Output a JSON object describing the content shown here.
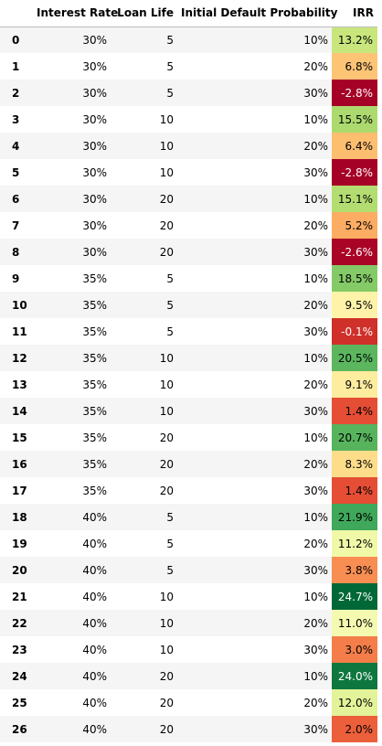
{
  "table": {
    "columns": [
      "",
      "Interest Rate",
      "Loan Life",
      "Initial Default Probability",
      "IRR"
    ],
    "rows": [
      {
        "index": "0",
        "rate": "30%",
        "life": "5",
        "prob": "10%",
        "irr": "13.2%",
        "irr_value": 13.2,
        "irr_bg": "#c8e67c",
        "irr_color": "#000000"
      },
      {
        "index": "1",
        "rate": "30%",
        "life": "5",
        "prob": "20%",
        "irr": "6.8%",
        "irr_value": 6.8,
        "irr_bg": "#fdc476",
        "irr_color": "#000000"
      },
      {
        "index": "2",
        "rate": "30%",
        "life": "5",
        "prob": "30%",
        "irr": "-2.8%",
        "irr_value": -2.8,
        "irr_bg": "#a50026",
        "irr_color": "#ffffff"
      },
      {
        "index": "3",
        "rate": "30%",
        "life": "10",
        "prob": "10%",
        "irr": "15.5%",
        "irr_value": 15.5,
        "irr_bg": "#acda6e",
        "irr_color": "#000000"
      },
      {
        "index": "4",
        "rate": "30%",
        "life": "10",
        "prob": "20%",
        "irr": "6.4%",
        "irr_value": 6.4,
        "irr_bg": "#fdbe70",
        "irr_color": "#000000"
      },
      {
        "index": "5",
        "rate": "30%",
        "life": "10",
        "prob": "30%",
        "irr": "-2.8%",
        "irr_value": -2.8,
        "irr_bg": "#a50026",
        "irr_color": "#ffffff"
      },
      {
        "index": "6",
        "rate": "30%",
        "life": "20",
        "prob": "10%",
        "irr": "15.1%",
        "irr_value": 15.1,
        "irr_bg": "#b3dd70",
        "irr_color": "#000000"
      },
      {
        "index": "7",
        "rate": "30%",
        "life": "20",
        "prob": "20%",
        "irr": "5.2%",
        "irr_value": 5.2,
        "irr_bg": "#fcac63",
        "irr_color": "#000000"
      },
      {
        "index": "8",
        "rate": "30%",
        "life": "20",
        "prob": "30%",
        "irr": "-2.6%",
        "irr_value": -2.6,
        "irr_bg": "#a90426",
        "irr_color": "#ffffff"
      },
      {
        "index": "9",
        "rate": "35%",
        "life": "5",
        "prob": "10%",
        "irr": "18.5%",
        "irr_value": 18.5,
        "irr_bg": "#84ca66",
        "irr_color": "#000000"
      },
      {
        "index": "10",
        "rate": "35%",
        "life": "5",
        "prob": "20%",
        "irr": "9.5%",
        "irr_value": 9.5,
        "irr_bg": "#fef3a8",
        "irr_color": "#000000"
      },
      {
        "index": "11",
        "rate": "35%",
        "life": "5",
        "prob": "30%",
        "irr": "-0.1%",
        "irr_value": -0.1,
        "irr_bg": "#d0302a",
        "irr_color": "#ffffff"
      },
      {
        "index": "12",
        "rate": "35%",
        "life": "10",
        "prob": "10%",
        "irr": "20.5%",
        "irr_value": 20.5,
        "irr_bg": "#5bb65e",
        "irr_color": "#000000"
      },
      {
        "index": "13",
        "rate": "35%",
        "life": "10",
        "prob": "20%",
        "irr": "9.1%",
        "irr_value": 9.1,
        "irr_bg": "#feec9f",
        "irr_color": "#000000"
      },
      {
        "index": "14",
        "rate": "35%",
        "life": "10",
        "prob": "30%",
        "irr": "1.4%",
        "irr_value": 1.4,
        "irr_bg": "#e54e35",
        "irr_color": "#000000"
      },
      {
        "index": "15",
        "rate": "35%",
        "life": "20",
        "prob": "10%",
        "irr": "20.7%",
        "irr_value": 20.7,
        "irr_bg": "#57b45d",
        "irr_color": "#000000"
      },
      {
        "index": "16",
        "rate": "35%",
        "life": "20",
        "prob": "20%",
        "irr": "8.3%",
        "irr_value": 8.3,
        "irr_bg": "#fedd8a",
        "irr_color": "#000000"
      },
      {
        "index": "17",
        "rate": "35%",
        "life": "20",
        "prob": "30%",
        "irr": "1.4%",
        "irr_value": 1.4,
        "irr_bg": "#e54e35",
        "irr_color": "#000000"
      },
      {
        "index": "18",
        "rate": "40%",
        "life": "5",
        "prob": "10%",
        "irr": "21.9%",
        "irr_value": 21.9,
        "irr_bg": "#3fa85a",
        "irr_color": "#000000"
      },
      {
        "index": "19",
        "rate": "40%",
        "life": "5",
        "prob": "20%",
        "irr": "11.2%",
        "irr_value": 11.2,
        "irr_bg": "#f0f9a8",
        "irr_color": "#000000"
      },
      {
        "index": "20",
        "rate": "40%",
        "life": "5",
        "prob": "30%",
        "irr": "3.8%",
        "irr_value": 3.8,
        "irr_bg": "#f88e52",
        "irr_color": "#000000"
      },
      {
        "index": "21",
        "rate": "40%",
        "life": "10",
        "prob": "10%",
        "irr": "24.7%",
        "irr_value": 24.7,
        "irr_bg": "#006837",
        "irr_color": "#ffffff"
      },
      {
        "index": "22",
        "rate": "40%",
        "life": "10",
        "prob": "20%",
        "irr": "11.0%",
        "irr_value": 11.0,
        "irr_bg": "#f4fbb0",
        "irr_color": "#000000"
      },
      {
        "index": "23",
        "rate": "40%",
        "life": "10",
        "prob": "30%",
        "irr": "3.0%",
        "irr_value": 3.0,
        "irr_bg": "#f47d4a",
        "irr_color": "#000000"
      },
      {
        "index": "24",
        "rate": "40%",
        "life": "20",
        "prob": "10%",
        "irr": "24.0%",
        "irr_value": 24.0,
        "irr_bg": "#0e773f",
        "irr_color": "#ffffff"
      },
      {
        "index": "25",
        "rate": "40%",
        "life": "20",
        "prob": "20%",
        "irr": "12.0%",
        "irr_value": 12.0,
        "irr_bg": "#e3f399",
        "irr_color": "#000000"
      },
      {
        "index": "26",
        "rate": "40%",
        "life": "20",
        "prob": "30%",
        "irr": "2.0%",
        "irr_value": 2.0,
        "irr_bg": "#ec5f3b",
        "irr_color": "#000000"
      }
    ]
  }
}
